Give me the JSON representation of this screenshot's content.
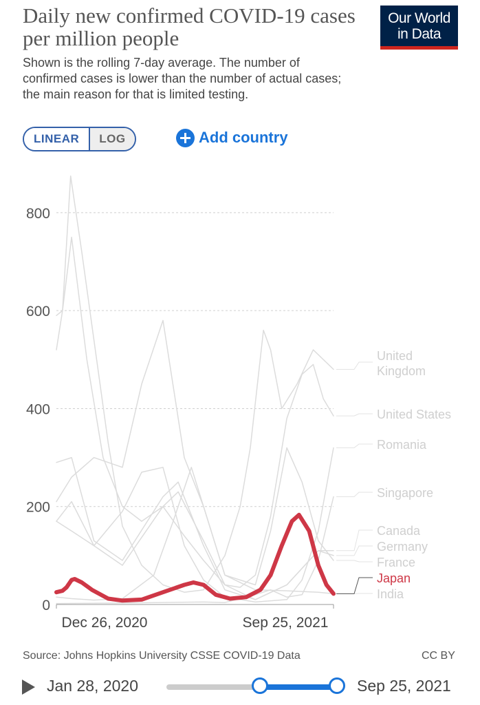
{
  "header": {
    "title": "Daily new confirmed COVID-19 cases per million people",
    "subtitle": "Shown is the rolling 7-day average. The number of confirmed cases is lower than the number of actual cases; the main reason for that is limited testing.",
    "logo_line1": "Our World",
    "logo_line2": "in Data"
  },
  "controls": {
    "linear_label": "LINEAR",
    "log_label": "LOG",
    "add_country_label": "Add country"
  },
  "footer": {
    "source": "Source: Johns Hopkins University CSSE COVID-19 Data",
    "license": "CC BY"
  },
  "timeline": {
    "start_date": "Jan 28, 2020",
    "end_date": "Sep 25, 2021",
    "selected_start": "Dec 26, 2020",
    "selected_end": "Sep 25, 2021",
    "start_fraction": 0.55,
    "end_fraction": 1.0
  },
  "colors": {
    "highlight": "#ce3746",
    "background_series": "#dcdcdc",
    "accent": "#1a74d9",
    "logo_bg": "#002147",
    "logo_bar": "#ce261e"
  },
  "chart_data": {
    "type": "line",
    "title": "Daily new confirmed COVID-19 cases per million people",
    "xlabel": "",
    "ylabel": "",
    "ylim": [
      0,
      880
    ],
    "yticks": [
      0,
      200,
      400,
      600,
      800
    ],
    "ytick_labels": [
      "0",
      "200",
      "400",
      "600",
      "800"
    ],
    "xticks": [
      "2020-12-26",
      "2021-09-25"
    ],
    "xtick_labels": [
      "Dec 26, 2020",
      "Sep 25, 2021"
    ],
    "grid": true,
    "legend": "end-of-line labels, right",
    "highlighted_series": "Japan",
    "series": [
      {
        "name": "United Kingdom",
        "end_value": 480,
        "x": [
          "2020-12-26",
          "2021-01-01",
          "2021-01-09",
          "2021-01-20",
          "2021-02-01",
          "2021-02-15",
          "2021-03-01",
          "2021-03-20",
          "2021-04-10",
          "2021-05-01",
          "2021-05-20",
          "2021-06-10",
          "2021-06-25",
          "2021-07-05",
          "2021-07-18",
          "2021-07-25",
          "2021-08-05",
          "2021-08-20",
          "2021-09-05",
          "2021-09-25"
        ],
        "values": [
          520,
          600,
          875,
          720,
          540,
          330,
          160,
          80,
          40,
          25,
          30,
          100,
          200,
          320,
          560,
          520,
          400,
          450,
          520,
          480
        ]
      },
      {
        "name": "United States",
        "end_value": 385,
        "x": [
          "2020-12-26",
          "2021-01-01",
          "2021-01-10",
          "2021-01-25",
          "2021-02-10",
          "2021-03-01",
          "2021-03-20",
          "2021-04-10",
          "2021-05-01",
          "2021-05-20",
          "2021-06-10",
          "2021-06-25",
          "2021-07-10",
          "2021-07-25",
          "2021-08-10",
          "2021-08-25",
          "2021-09-05",
          "2021-09-15",
          "2021-09-25"
        ],
        "values": [
          590,
          600,
          750,
          500,
          300,
          200,
          170,
          200,
          140,
          90,
          40,
          35,
          60,
          180,
          380,
          470,
          490,
          420,
          385
        ]
      },
      {
        "name": "Romania",
        "end_value": 320,
        "x": [
          "2020-12-26",
          "2021-01-10",
          "2021-02-01",
          "2021-03-01",
          "2021-03-20",
          "2021-04-10",
          "2021-05-01",
          "2021-05-20",
          "2021-06-10",
          "2021-07-10",
          "2021-08-10",
          "2021-08-25",
          "2021-09-10",
          "2021-09-25"
        ],
        "values": [
          170,
          150,
          120,
          190,
          270,
          280,
          120,
          50,
          15,
          5,
          10,
          50,
          150,
          320
        ]
      },
      {
        "name": "Singapore",
        "end_value": 220,
        "x": [
          "2020-12-26",
          "2021-03-01",
          "2021-05-20",
          "2021-06-10",
          "2021-07-10",
          "2021-07-25",
          "2021-08-10",
          "2021-08-25",
          "2021-09-10",
          "2021-09-25"
        ],
        "values": [
          2,
          3,
          5,
          4,
          20,
          30,
          15,
          20,
          90,
          220
        ]
      },
      {
        "name": "Canada",
        "end_value": 110,
        "x": [
          "2020-12-26",
          "2021-01-10",
          "2021-02-01",
          "2021-03-01",
          "2021-04-10",
          "2021-04-25",
          "2021-05-20",
          "2021-06-10",
          "2021-07-10",
          "2021-08-10",
          "2021-09-10",
          "2021-09-25"
        ],
        "values": [
          170,
          210,
          120,
          80,
          200,
          230,
          130,
          40,
          10,
          40,
          110,
          110
        ]
      },
      {
        "name": "Germany",
        "end_value": 100,
        "x": [
          "2020-12-26",
          "2021-01-10",
          "2021-02-01",
          "2021-03-01",
          "2021-04-10",
          "2021-04-25",
          "2021-05-20",
          "2021-06-10",
          "2021-07-10",
          "2021-08-10",
          "2021-09-10",
          "2021-09-25"
        ],
        "values": [
          290,
          300,
          130,
          90,
          220,
          250,
          120,
          30,
          10,
          40,
          110,
          100
        ]
      },
      {
        "name": "France",
        "end_value": 90,
        "x": [
          "2020-12-26",
          "2021-01-10",
          "2021-02-01",
          "2021-03-01",
          "2021-03-20",
          "2021-04-10",
          "2021-05-01",
          "2021-05-20",
          "2021-06-10",
          "2021-07-10",
          "2021-07-25",
          "2021-08-10",
          "2021-08-25",
          "2021-09-10",
          "2021-09-25"
        ],
        "values": [
          210,
          260,
          300,
          280,
          450,
          580,
          300,
          200,
          60,
          40,
          150,
          320,
          250,
          130,
          90
        ]
      },
      {
        "name": "Japan",
        "end_value": 22,
        "x": [
          "2020-12-26",
          "2021-01-01",
          "2021-01-05",
          "2021-01-10",
          "2021-01-13",
          "2021-01-20",
          "2021-01-30",
          "2021-02-15",
          "2021-03-01",
          "2021-03-20",
          "2021-04-10",
          "2021-05-01",
          "2021-05-10",
          "2021-05-20",
          "2021-06-01",
          "2021-06-15",
          "2021-07-01",
          "2021-07-15",
          "2021-07-25",
          "2021-08-05",
          "2021-08-15",
          "2021-08-22",
          "2021-09-01",
          "2021-09-10",
          "2021-09-18",
          "2021-09-25"
        ],
        "values": [
          25,
          28,
          35,
          50,
          52,
          45,
          30,
          12,
          8,
          10,
          25,
          40,
          45,
          40,
          20,
          12,
          15,
          30,
          60,
          120,
          170,
          183,
          150,
          80,
          40,
          22
        ]
      },
      {
        "name": "India",
        "end_value": 22,
        "x": [
          "2020-12-26",
          "2021-01-10",
          "2021-02-01",
          "2021-03-01",
          "2021-04-01",
          "2021-04-20",
          "2021-05-08",
          "2021-05-20",
          "2021-06-10",
          "2021-07-10",
          "2021-08-10",
          "2021-09-10",
          "2021-09-25"
        ],
        "values": [
          15,
          12,
          9,
          12,
          60,
          170,
          280,
          200,
          60,
          30,
          28,
          25,
          22
        ]
      }
    ]
  }
}
